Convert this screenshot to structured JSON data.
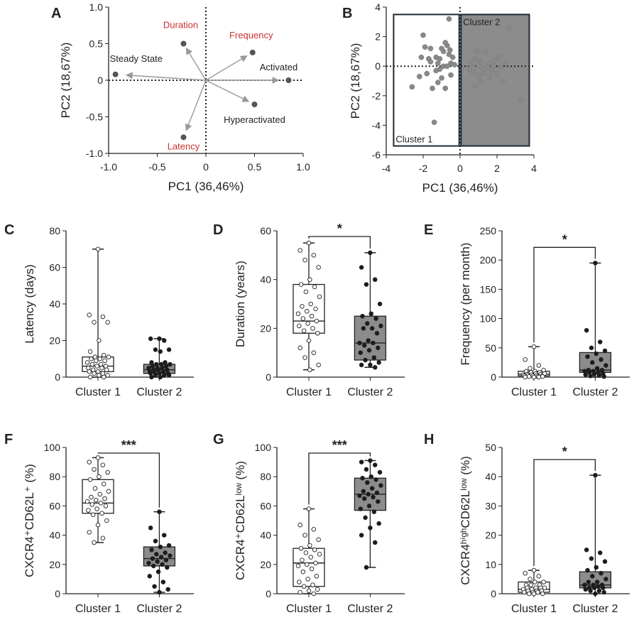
{
  "chart_data": [
    {
      "panel": "A",
      "type": "scatter",
      "xlabel": "PC1 (36,46%)",
      "ylabel": "PC2 (18,67%)",
      "xlim": [
        -1.0,
        1.0
      ],
      "ylim": [
        -1.0,
        1.0
      ],
      "xticks": [
        "-1.0",
        "-0.5",
        "0",
        "0.5",
        "1.0"
      ],
      "yticks": [
        "1.0",
        "0.5",
        "0",
        "-0.5",
        "-1.0"
      ],
      "grid": false,
      "vectors": [
        {
          "label": "Duration",
          "x": -0.23,
          "y": 0.5,
          "color": "#c8312f"
        },
        {
          "label": "Frequency",
          "x": 0.48,
          "y": 0.38,
          "color": "#c8312f"
        },
        {
          "label": "Steady State",
          "x": -0.93,
          "y": 0.08,
          "color": "#222222"
        },
        {
          "label": "Activated",
          "x": 0.85,
          "y": 0.0,
          "color": "#222222"
        },
        {
          "label": "Hyperactivated",
          "x": 0.5,
          "y": -0.33,
          "color": "#222222"
        },
        {
          "label": "Latency",
          "x": -0.23,
          "y": -0.78,
          "color": "#c8312f"
        }
      ]
    },
    {
      "panel": "B",
      "type": "scatter",
      "xlabel": "PC1 (36,46%)",
      "ylabel": "PC2 (18,67%)",
      "xlim": [
        -4,
        4
      ],
      "ylim": [
        -6,
        4
      ],
      "xticks": [
        "-4",
        "-2",
        "0",
        "2",
        "4"
      ],
      "yticks": [
        "4",
        "2",
        "0",
        "-2",
        "-4",
        "-6"
      ],
      "regions": [
        {
          "label": "Cluster 1",
          "x": [
            -3.6,
            -0.05
          ],
          "y": [
            -5.4,
            3.5
          ],
          "fill": "#ffffff"
        },
        {
          "label": "Cluster 2",
          "x": [
            0.05,
            3.75
          ],
          "y": [
            -5.4,
            3.5
          ],
          "fill": "#8c8c8c"
        }
      ],
      "points": [
        [
          -0.6,
          3.2
        ],
        [
          -2.0,
          2.1
        ],
        [
          -1.9,
          1.3
        ],
        [
          -1.6,
          1.2
        ],
        [
          -2.1,
          0.6
        ],
        [
          -1.7,
          0.5
        ],
        [
          -1.3,
          0.6
        ],
        [
          -1.1,
          0.5
        ],
        [
          -0.6,
          0.8
        ],
        [
          -0.55,
          1.1
        ],
        [
          -0.7,
          1.4
        ],
        [
          -0.4,
          0.6
        ],
        [
          -1.0,
          1.2
        ],
        [
          -0.9,
          1.0
        ],
        [
          -1.6,
          0.3
        ],
        [
          -1.2,
          0.2
        ],
        [
          -0.9,
          0.0
        ],
        [
          -0.7,
          0.0
        ],
        [
          -0.5,
          0.2
        ],
        [
          -0.3,
          0.1
        ],
        [
          -1.1,
          -0.2
        ],
        [
          -1.3,
          -0.3
        ],
        [
          -1.8,
          -0.5
        ],
        [
          -2.2,
          -0.7
        ],
        [
          -1.0,
          -0.8
        ],
        [
          -1.2,
          -1.1
        ],
        [
          -2.6,
          -1.4
        ],
        [
          -1.5,
          -1.5
        ],
        [
          -0.8,
          -1.5
        ],
        [
          -1.4,
          -3.8
        ],
        [
          -0.5,
          -0.6
        ],
        [
          -0.8,
          1.6
        ],
        [
          2.7,
          2.6
        ],
        [
          0.9,
          1.0
        ],
        [
          1.4,
          1.0
        ],
        [
          0.8,
          0.5
        ],
        [
          1.1,
          0.4
        ],
        [
          1.6,
          0.2
        ],
        [
          1.9,
          0.4
        ],
        [
          2.1,
          0.6
        ],
        [
          0.6,
          0.1
        ],
        [
          1.0,
          0.0
        ],
        [
          1.2,
          -0.1
        ],
        [
          1.5,
          -0.1
        ],
        [
          1.8,
          0.0
        ],
        [
          2.2,
          0.0
        ],
        [
          2.5,
          0.2
        ],
        [
          0.7,
          -0.4
        ],
        [
          1.0,
          -0.6
        ],
        [
          1.3,
          -0.5
        ],
        [
          1.6,
          -0.8
        ],
        [
          2.0,
          -0.5
        ],
        [
          1.1,
          -1.0
        ],
        [
          0.8,
          -1.3
        ],
        [
          2.3,
          -1.0
        ],
        [
          3.3,
          -2.3
        ],
        [
          0.5,
          -0.2
        ],
        [
          1.7,
          -0.3
        ]
      ]
    },
    {
      "panel": "C",
      "type": "box",
      "ylabel": "Latency (days)",
      "ylim": [
        0,
        80
      ],
      "yticks": [
        "80",
        "60",
        "40",
        "20",
        "0"
      ],
      "categories": [
        "Cluster 1",
        "Cluster 2"
      ],
      "boxes": [
        {
          "min": 0,
          "q1": 3,
          "median": 6,
          "q3": 11,
          "max": 70,
          "fill": "#ffffff",
          "points": [
            70,
            34,
            33,
            30,
            30,
            20,
            14,
            12,
            11,
            11,
            10,
            10,
            9,
            9,
            8,
            7,
            7,
            6,
            6,
            5,
            5,
            4,
            4,
            3,
            3,
            2,
            2,
            1,
            1,
            0,
            0
          ]
        },
        {
          "min": 0,
          "q1": 2,
          "median": 4,
          "q3": 7,
          "max": 21,
          "fill": "#8c8c8c",
          "points": [
            21,
            21,
            20,
            15,
            15,
            14,
            8,
            8,
            7,
            7,
            7,
            6,
            6,
            5,
            5,
            5,
            4,
            4,
            4,
            3,
            3,
            3,
            2,
            2,
            2,
            1,
            1,
            1,
            0,
            0
          ]
        }
      ]
    },
    {
      "panel": "D",
      "type": "box",
      "ylabel": "Duration (years)",
      "ylim": [
        0,
        60
      ],
      "yticks": [
        "60",
        "40",
        "20",
        "0"
      ],
      "categories": [
        "Cluster 1",
        "Cluster 2"
      ],
      "significance": "*",
      "boxes": [
        {
          "min": 3,
          "q1": 18,
          "median": 23,
          "q3": 38,
          "max": 55,
          "fill": "#ffffff",
          "points": [
            55,
            52,
            50,
            48,
            45,
            40,
            38,
            37,
            35,
            33,
            30,
            29,
            28,
            27,
            26,
            25,
            24,
            23,
            22,
            21,
            20,
            19,
            18,
            15,
            12,
            10,
            8,
            5,
            3
          ]
        },
        {
          "min": 4,
          "q1": 7,
          "median": 14,
          "q3": 25,
          "max": 51,
          "fill": "#8c8c8c",
          "points": [
            51,
            45,
            40,
            38,
            30,
            26,
            25,
            24,
            22,
            21,
            20,
            20,
            18,
            15,
            14,
            14,
            13,
            12,
            11,
            10,
            8,
            7,
            6,
            5,
            5,
            4
          ]
        }
      ]
    },
    {
      "panel": "E",
      "type": "box",
      "ylabel": "Frequency (per month)",
      "ylim": [
        0,
        250
      ],
      "yticks": [
        "250",
        "200",
        "150",
        "100",
        "50",
        "0"
      ],
      "categories": [
        "Cluster 1",
        "Cluster 2"
      ],
      "significance": "*",
      "boxes": [
        {
          "min": 0,
          "q1": 2,
          "median": 5,
          "q3": 10,
          "max": 52,
          "fill": "#ffffff",
          "points": [
            52,
            30,
            20,
            15,
            12,
            10,
            10,
            8,
            8,
            6,
            6,
            5,
            5,
            4,
            4,
            3,
            3,
            2,
            2,
            2,
            1,
            1,
            1,
            0,
            0,
            0
          ]
        },
        {
          "min": 0,
          "q1": 8,
          "median": 12,
          "q3": 42,
          "max": 195,
          "fill": "#8c8c8c",
          "points": [
            195,
            80,
            60,
            50,
            45,
            40,
            35,
            30,
            25,
            20,
            15,
            12,
            12,
            10,
            10,
            8,
            8,
            6,
            5,
            4,
            3,
            2,
            1
          ]
        }
      ]
    },
    {
      "panel": "F",
      "type": "box",
      "ylabel": "CXCR4⁺CD62L⁺ (%)",
      "ylim": [
        0,
        100
      ],
      "yticks": [
        "100",
        "80",
        "60",
        "40",
        "20",
        "0"
      ],
      "categories": [
        "Cluster 1",
        "Cluster 2"
      ],
      "significance": "***",
      "boxes": [
        {
          "min": 35,
          "q1": 55,
          "median": 62,
          "q3": 78,
          "max": 93,
          "fill": "#ffffff",
          "points": [
            93,
            90,
            88,
            85,
            83,
            80,
            78,
            75,
            72,
            70,
            68,
            66,
            65,
            64,
            63,
            62,
            61,
            60,
            58,
            57,
            55,
            54,
            50,
            47,
            42,
            38,
            35
          ]
        },
        {
          "min": 1,
          "q1": 19,
          "median": 24,
          "q3": 32,
          "max": 56,
          "fill": "#8c8c8c",
          "points": [
            56,
            45,
            40,
            36,
            33,
            32,
            30,
            28,
            27,
            26,
            25,
            24,
            23,
            22,
            21,
            20,
            19,
            18,
            15,
            12,
            8,
            5,
            3,
            1
          ]
        }
      ]
    },
    {
      "panel": "G",
      "type": "box",
      "ylabel": "CXCR4⁺CD62Lˡᵒʷ (%)",
      "ylim": [
        0,
        100
      ],
      "yticks": [
        "100",
        "80",
        "60",
        "40",
        "20",
        "0"
      ],
      "categories": [
        "Cluster 1",
        "Cluster 2"
      ],
      "significance": "***",
      "boxes": [
        {
          "min": 0,
          "q1": 5,
          "median": 21,
          "q3": 31,
          "max": 58,
          "fill": "#ffffff",
          "points": [
            58,
            47,
            44,
            40,
            37,
            33,
            31,
            30,
            28,
            27,
            25,
            23,
            21,
            20,
            19,
            17,
            15,
            12,
            10,
            8,
            6,
            5,
            3,
            2,
            1,
            0
          ]
        },
        {
          "min": 18,
          "q1": 57,
          "median": 68,
          "q3": 79,
          "max": 91,
          "fill": "#8c8c8c",
          "points": [
            91,
            90,
            88,
            85,
            83,
            80,
            79,
            78,
            76,
            74,
            72,
            70,
            69,
            68,
            67,
            66,
            65,
            63,
            60,
            58,
            56,
            52,
            48,
            45,
            40,
            35,
            18
          ]
        }
      ]
    },
    {
      "panel": "H",
      "type": "box",
      "ylabel": "CXCR4ʰⁱᵍʰCD62Lˡᵒʷ (%)",
      "ylim": [
        0,
        50
      ],
      "yticks": [
        "50",
        "40",
        "30",
        "20",
        "10",
        "0"
      ],
      "categories": [
        "Cluster 1",
        "Cluster 2"
      ],
      "significance": "*",
      "boxes": [
        {
          "min": 0,
          "q1": 0.5,
          "median": 1.5,
          "q3": 4,
          "max": 8,
          "fill": "#ffffff",
          "points": [
            8,
            7,
            6,
            5,
            4,
            4,
            3,
            3,
            3,
            2,
            2,
            2,
            2,
            1.5,
            1.5,
            1,
            1,
            1,
            0.5,
            0.5,
            0.5,
            0,
            0,
            0
          ]
        },
        {
          "min": 0,
          "q1": 2,
          "median": 3,
          "q3": 7.5,
          "max": 40.5,
          "fill": "#8c8c8c",
          "points": [
            40.5,
            15,
            14,
            12,
            11,
            9,
            8,
            7,
            6,
            5,
            4,
            4,
            3,
            3,
            3,
            2.5,
            2,
            2,
            2,
            1.5,
            1,
            1,
            0.5,
            0
          ]
        }
      ]
    }
  ]
}
